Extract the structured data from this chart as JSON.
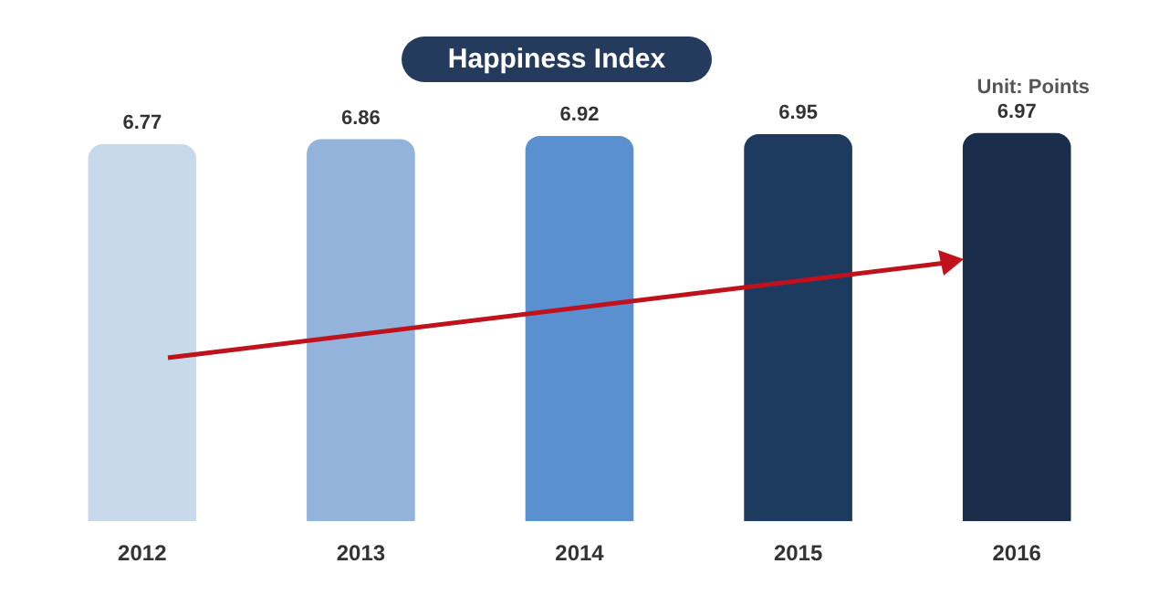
{
  "chart_data": {
    "type": "bar",
    "title": "Happiness Index",
    "annotations": [
      "Unit: Points"
    ],
    "categories": [
      "2012",
      "2013",
      "2014",
      "2015",
      "2016"
    ],
    "values": [
      6.77,
      6.86,
      6.92,
      6.95,
      6.97
    ],
    "colors": [
      "#c9d9ec",
      "#93b3da",
      "#5a8fd0",
      "#1d3a5f",
      "#1a2e4c"
    ],
    "data_labels": true,
    "grid": false,
    "legend": false
  }
}
